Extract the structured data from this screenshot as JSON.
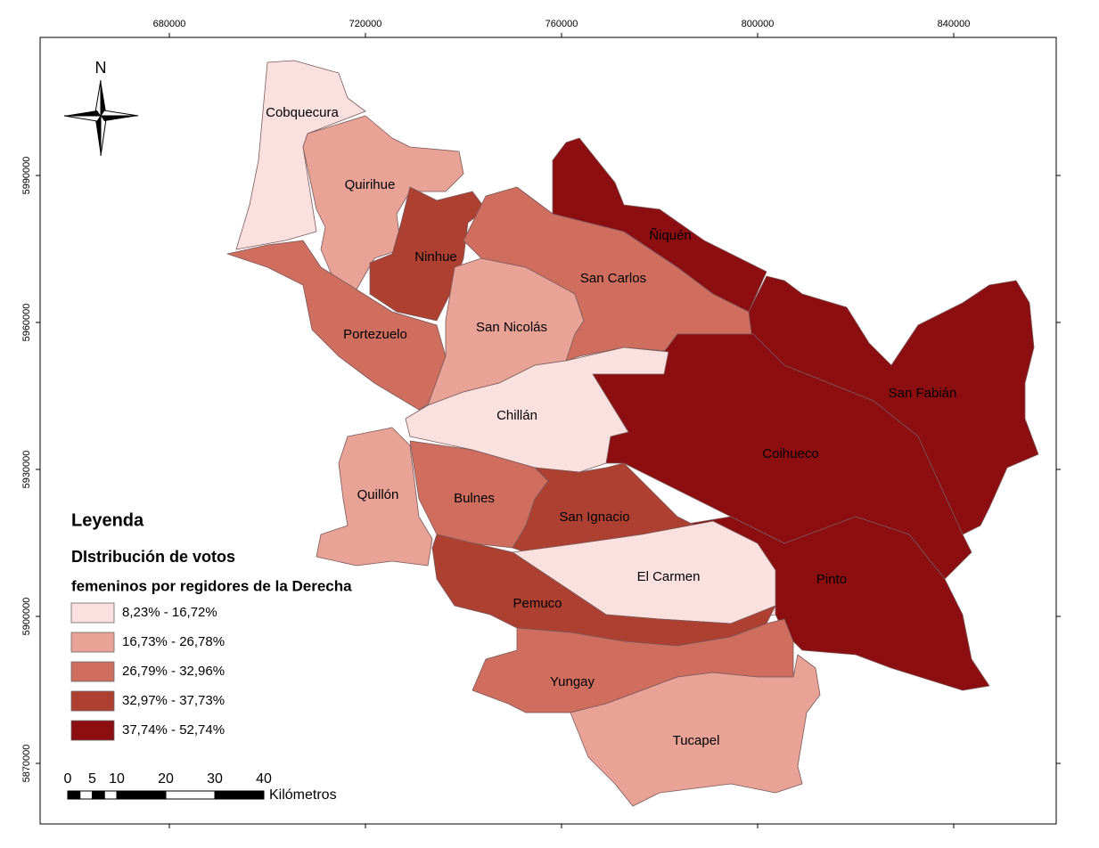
{
  "frame": {
    "xticks": [
      680000,
      720000,
      760000,
      800000,
      840000
    ],
    "yticks": [
      5990000,
      5960000,
      5930000,
      5900000,
      5870000
    ]
  },
  "north_arrow": "N",
  "communes": [
    "Cobquecura",
    "Quirihue",
    "Ninhue",
    "Portezuelo",
    "San Nicolás",
    "San Carlos",
    "Ñiquén",
    "San Fabián",
    "Coihueco",
    "Pinto",
    "Chillán",
    "Quillón",
    "Bulnes",
    "San Ignacio",
    "El Carmen",
    "Pemuco",
    "Yungay",
    "Tucapel"
  ],
  "legend": {
    "title": "Leyenda",
    "subtitle_1": "DIstribución de votos",
    "subtitle_2": "femeninos por regidores de la Derecha",
    "classes": [
      {
        "label": "8,23% - 16,72%",
        "color": "#fbe0e0"
      },
      {
        "label": "16,73% - 26,78%",
        "color": "#e9a296"
      },
      {
        "label": "26,79% - 32,96%",
        "color": "#cf6d5f"
      },
      {
        "label": "32,97% - 37,73%",
        "color": "#ae4032"
      },
      {
        "label": "37,74% - 52,74%",
        "color": "#8c0e10"
      }
    ]
  },
  "scale_bar": {
    "ticks": [
      0,
      5,
      10,
      20,
      30,
      40
    ],
    "unit": "Kilómetros"
  }
}
